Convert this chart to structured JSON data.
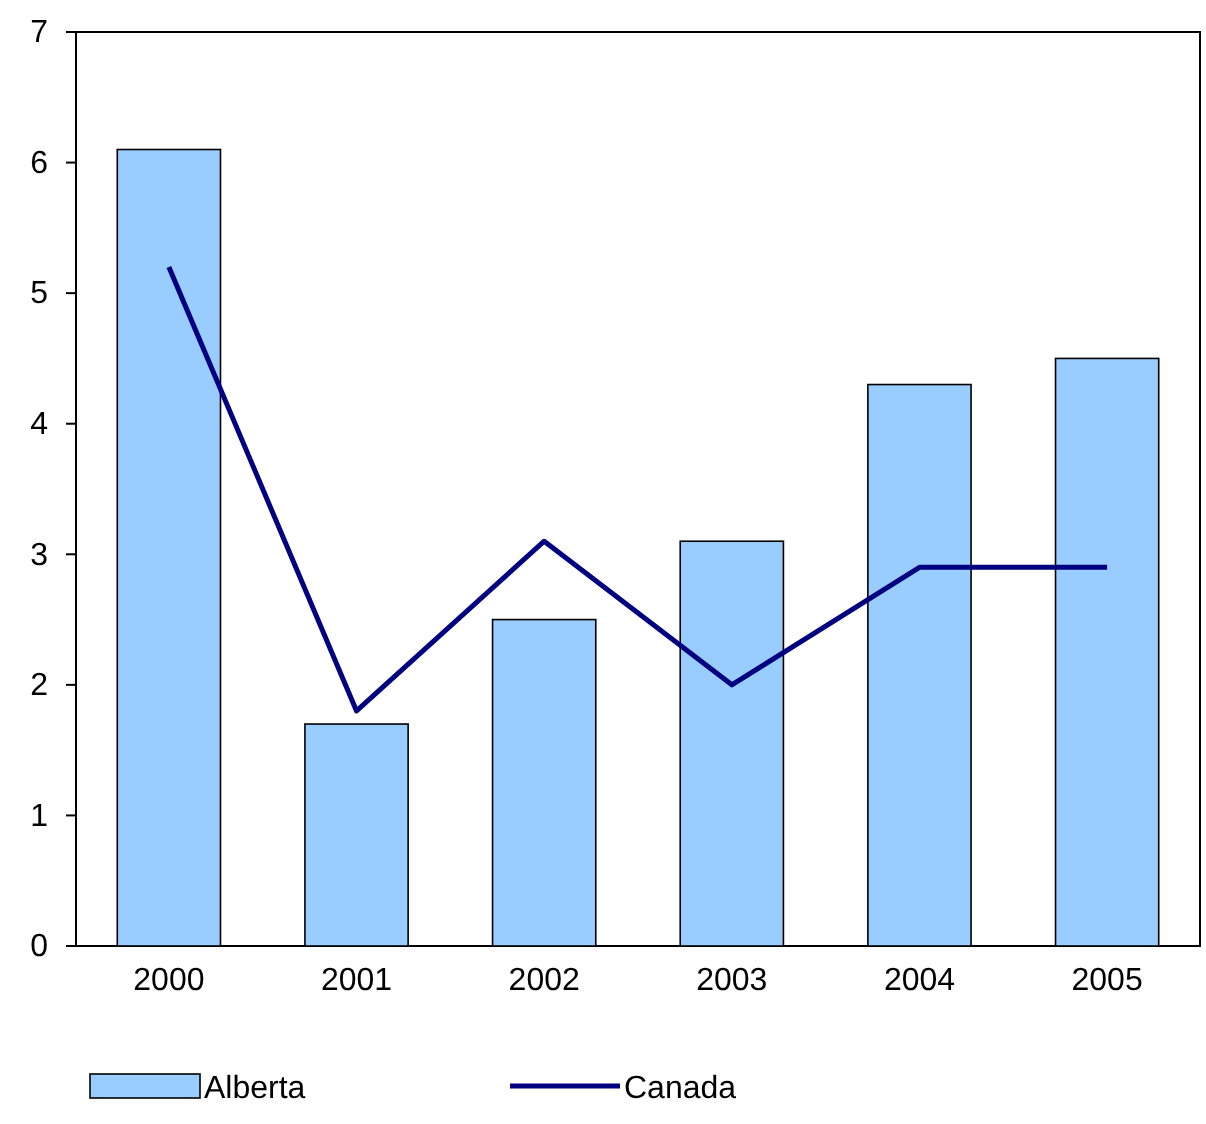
{
  "chart_data": {
    "type": "bar",
    "categories": [
      "2000",
      "2001",
      "2002",
      "2003",
      "2004",
      "2005"
    ],
    "series": [
      {
        "name": "Alberta",
        "color": "#99ccff",
        "values": [
          6.1,
          1.7,
          2.5,
          3.1,
          4.3,
          4.5
        ]
      },
      {
        "name": "Canada",
        "type": "line",
        "color": "#000080",
        "values": [
          5.2,
          1.8,
          3.1,
          2.0,
          2.9,
          2.9
        ]
      }
    ],
    "ylim": [
      0,
      7
    ],
    "yticks": [
      0,
      1,
      2,
      3,
      4,
      5,
      6,
      7
    ],
    "grid": false,
    "legend": "bottom left",
    "marker": "none",
    "line_style": "solid"
  }
}
